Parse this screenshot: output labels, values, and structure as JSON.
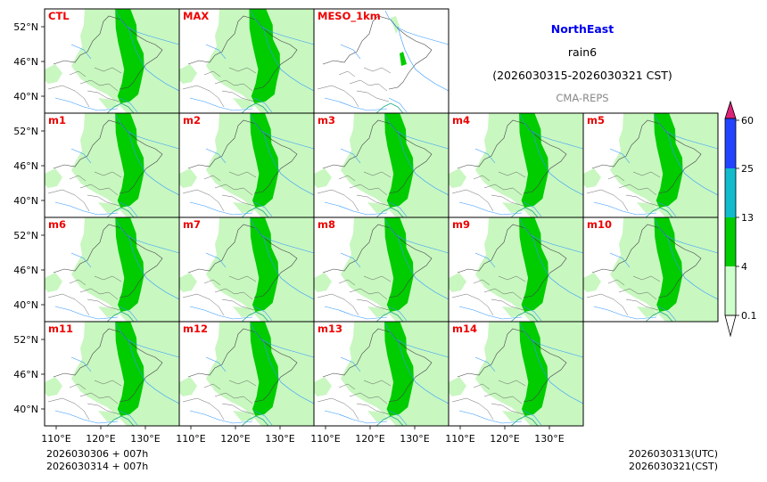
{
  "header": {
    "region": "NorthEast",
    "variable": "rain6",
    "period": "(2026030315-2026030321 CST)",
    "system": "CMA-REPS"
  },
  "panels": [
    {
      "id": "ctl",
      "label": "CTL",
      "amount": 1.0
    },
    {
      "id": "max",
      "label": "MAX",
      "amount": 1.25
    },
    {
      "id": "meso",
      "label": "MESO_1km",
      "amount": 0.2
    },
    {
      "id": "m1",
      "label": "m1",
      "amount": 1.0
    },
    {
      "id": "m2",
      "label": "m2",
      "amount": 0.95
    },
    {
      "id": "m3",
      "label": "m3",
      "amount": 1.0
    },
    {
      "id": "m4",
      "label": "m4",
      "amount": 1.05
    },
    {
      "id": "m5",
      "label": "m5",
      "amount": 1.0
    },
    {
      "id": "m6",
      "label": "m6",
      "amount": 0.95
    },
    {
      "id": "m7",
      "label": "m7",
      "amount": 0.95
    },
    {
      "id": "m8",
      "label": "m8",
      "amount": 1.0
    },
    {
      "id": "m9",
      "label": "m9",
      "amount": 1.05
    },
    {
      "id": "m10",
      "label": "m10",
      "amount": 0.9
    },
    {
      "id": "m11",
      "label": "m11",
      "amount": 1.0
    },
    {
      "id": "m12",
      "label": "m12",
      "amount": 0.95
    },
    {
      "id": "m13",
      "label": "m13",
      "amount": 1.05
    },
    {
      "id": "m14",
      "label": "m14",
      "amount": 0.95
    }
  ],
  "lat_ticks": [
    "52°N",
    "46°N",
    "40°N"
  ],
  "lon_ticks": [
    "110°E",
    "120°E",
    "130°E"
  ],
  "colorbar": {
    "levels": [
      "0.1",
      "4",
      "13",
      "25",
      "60"
    ],
    "colors": [
      "#ccffcc",
      "#00cc00",
      "#11bbcc",
      "#2244ff",
      "#dd2277"
    ],
    "extend_low_color": "#ffffff"
  },
  "colors": {
    "light_rain": "#c8f7c0",
    "moderate_rain": "#00cc00",
    "panel_label": "#ee0000",
    "title": "#0000ee",
    "system": "#888888",
    "river": "#3399ff",
    "border": "#444444"
  },
  "footer": {
    "init_line": "2026030306  +  007h",
    "valid_line": "2026030314  +  007h",
    "utc": "2026030313(UTC)",
    "cst": "2026030321(CST)"
  }
}
